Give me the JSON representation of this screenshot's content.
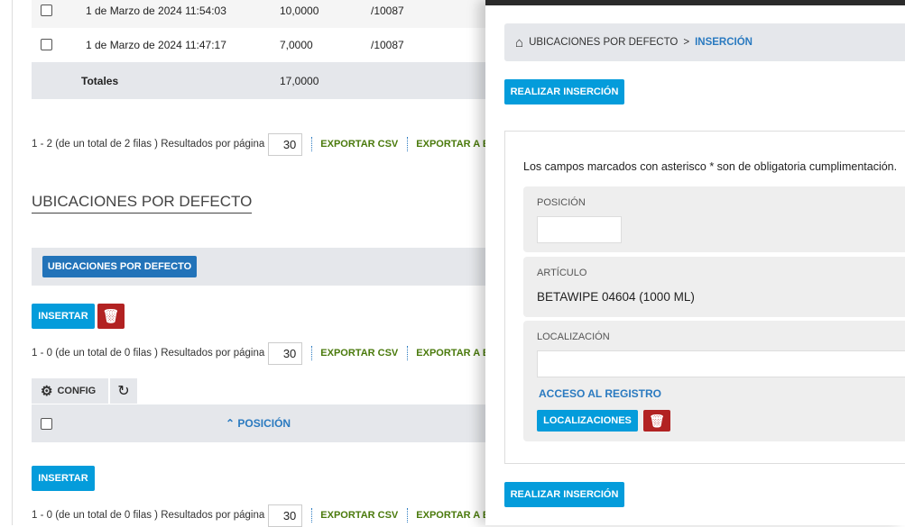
{
  "top_table": {
    "rows": [
      {
        "date": "1 de Marzo de 2024 11:54:03",
        "qty": "10,0000",
        "ref": "/10087"
      },
      {
        "date": "1 de Marzo de 2024 11:47:17",
        "qty": "7,0000",
        "ref": "/10087"
      }
    ],
    "totals_label": "Totales",
    "totals_value": "17,0000"
  },
  "pager1": {
    "info": "1 - 2 (de un total de 2 filas )",
    "per_page_label": "Resultados por página",
    "per_page": "30",
    "export_csv": "EXPORTAR CSV",
    "export_excel": "EXPORTAR A E"
  },
  "section": {
    "title": "UBICACIONES POR DEFECTO",
    "tab": "UBICACIONES POR DEFECTO",
    "insert": "INSERTAR",
    "config": "CONFIG",
    "column_posicion": "POSICIÓN"
  },
  "pager2": {
    "info": "1 - 0 (de un total de 0 filas )",
    "per_page_label": "Resultados por página",
    "per_page": "30",
    "export_csv": "EXPORTAR CSV",
    "export_excel": "EXPORTAR A E"
  },
  "pager3": {
    "info": "1 - 0 (de un total de 0 filas )",
    "per_page_label": "Resultados por página",
    "per_page": "30",
    "export_csv": "EXPORTAR CSV",
    "export_excel": "EXPORTAR A E"
  },
  "panel": {
    "breadcrumb": {
      "parent": "UBICACIONES POR DEFECTO",
      "sep": ">",
      "current": "INSERCIÓN"
    },
    "submit": "REALIZAR INSERCIÓN",
    "required_note": "Los campos marcados con asterisco * son de obligatoria cumplimentación.",
    "posicion_label": "POSICIÓN",
    "posicion_value": "",
    "articulo_label": "ARTÍCULO",
    "articulo_value": "BETAWIPE 04604 (1000 ML)",
    "localizacion_label": "LOCALIZACIÓN",
    "localizacion_value": "",
    "acceso": "ACCESO AL REGISTRO",
    "localizaciones": "LOCALIZACIONES"
  },
  "colors": {
    "primary": "#049cdb",
    "danger": "#b22222",
    "export": "#4a7a0c",
    "link": "#2a7ac0"
  }
}
